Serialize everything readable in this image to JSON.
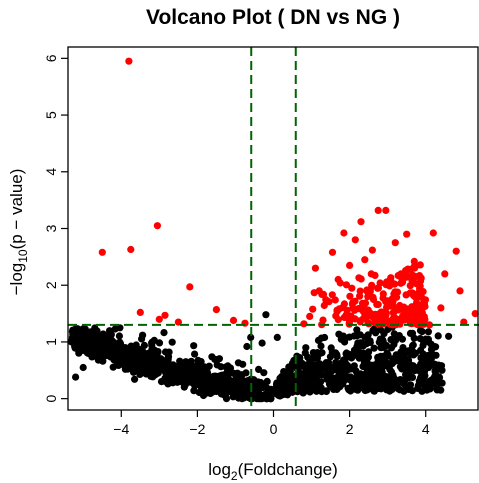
{
  "chart_data": {
    "type": "scatter",
    "title": "Volcano Plot ( DN vs NG )",
    "xlabel": {
      "base": "log",
      "sub": "2",
      "rest": "(Foldchange)"
    },
    "ylabel": {
      "pre": "−log",
      "sub": "10",
      "rest": "(p − value)"
    },
    "xlim": [
      -5.4,
      5.4
    ],
    "ylim": [
      -0.2,
      6.2
    ],
    "xticks": [
      -4,
      -2,
      0,
      2,
      4
    ],
    "yticks": [
      0,
      1,
      2,
      3,
      4,
      5,
      6
    ],
    "thresholds": {
      "vlines": [
        -0.585,
        0.585
      ],
      "hline": 1.301,
      "color": "#006400",
      "style": "dashed"
    },
    "colors": {
      "significant": "#ff0000",
      "not_significant": "#000000"
    },
    "significant_points": [
      [
        -3.8,
        5.95
      ],
      [
        -3.05,
        3.05
      ],
      [
        -3.75,
        2.63
      ],
      [
        -4.5,
        2.58
      ],
      [
        -2.2,
        1.97
      ],
      [
        -2.85,
        1.47
      ],
      [
        -3.5,
        1.52
      ],
      [
        -3.0,
        1.4
      ],
      [
        -1.5,
        1.57
      ],
      [
        -1.05,
        1.38
      ],
      [
        -0.75,
        1.33
      ],
      [
        -2.5,
        1.35
      ],
      [
        2.75,
        3.32
      ],
      [
        2.95,
        3.32
      ],
      [
        2.3,
        3.12
      ],
      [
        3.5,
        2.9
      ],
      [
        4.2,
        2.92
      ],
      [
        1.85,
        2.92
      ],
      [
        1.1,
        2.3
      ],
      [
        1.55,
        2.58
      ],
      [
        2.15,
        2.8
      ],
      [
        2.6,
        2.62
      ],
      [
        4.8,
        2.6
      ],
      [
        3.2,
        2.75
      ],
      [
        1.7,
        2.1
      ],
      [
        2.4,
        2.45
      ],
      [
        4.5,
        2.2
      ],
      [
        3.7,
        2.42
      ],
      [
        5.3,
        1.5
      ],
      [
        4.9,
        1.9
      ],
      [
        4.4,
        1.6
      ],
      [
        4.1,
        1.3
      ],
      [
        3.8,
        1.85
      ],
      [
        5.0,
        1.35
      ],
      [
        3.35,
        2.2
      ],
      [
        2.0,
        2.35
      ],
      [
        1.4,
        1.72
      ],
      [
        0.95,
        1.45
      ],
      [
        0.8,
        1.32
      ],
      [
        1.2,
        1.9
      ]
    ],
    "cluster": {
      "x_range": [
        0.85,
        4.0
      ],
      "y_range": [
        1.3,
        2.4
      ],
      "count": 230
    },
    "nonsig": {
      "right_band_count": 650,
      "left_band_count": 900,
      "extra_points": [
        [
          -0.2,
          1.48
        ],
        [
          -0.6,
          1.08
        ],
        [
          -0.3,
          0.98
        ],
        [
          -0.7,
          0.92
        ],
        [
          4.0,
          1.05
        ],
        [
          3.6,
          1.15
        ],
        [
          4.6,
          1.1
        ],
        [
          3.0,
          1.22
        ],
        [
          -5.35,
          0.5
        ],
        [
          -5.2,
          0.38
        ],
        [
          -5.0,
          0.55
        ],
        [
          -4.6,
          0.68
        ],
        [
          -4.2,
          0.78
        ],
        [
          -3.9,
          0.9
        ],
        [
          0.1,
          1.08
        ],
        [
          3.3,
          0.75
        ],
        [
          4.2,
          0.6
        ],
        [
          3.8,
          0.55
        ]
      ]
    }
  }
}
